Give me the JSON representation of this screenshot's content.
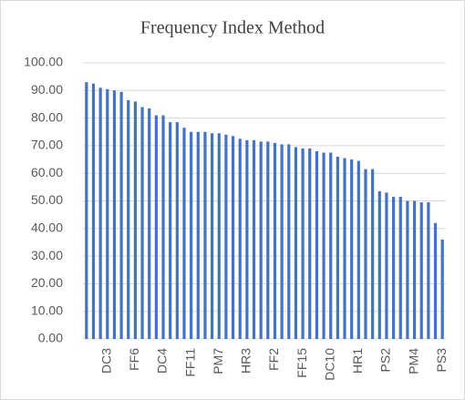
{
  "chart_data": {
    "type": "bar",
    "title": "Frequency Index Method",
    "categories": [
      null,
      null,
      null,
      "DC3",
      null,
      null,
      null,
      "FF6",
      null,
      null,
      null,
      "DC4",
      null,
      null,
      null,
      "FF11",
      null,
      null,
      null,
      "PM7",
      null,
      null,
      null,
      "HR3",
      null,
      null,
      null,
      "FF2",
      null,
      null,
      null,
      "FF15",
      null,
      null,
      null,
      "DC10",
      null,
      null,
      null,
      "HR1",
      null,
      null,
      null,
      "PS2",
      null,
      null,
      null,
      "PM4",
      null,
      null,
      null,
      "PS3"
    ],
    "values": [
      93,
      92.5,
      91,
      90.5,
      90,
      89.5,
      86.5,
      86,
      84,
      83.5,
      81,
      81,
      78.5,
      78.5,
      76.5,
      75,
      75,
      75,
      74.5,
      74.5,
      74,
      73.5,
      72.5,
      72,
      72,
      71.5,
      71.5,
      71,
      70.5,
      70.5,
      69.5,
      69,
      69,
      68,
      67.5,
      67.5,
      66,
      65.5,
      65,
      64.5,
      61.5,
      61.5,
      53.5,
      53,
      51.5,
      51.5,
      50,
      50,
      49.5,
      49.5,
      42,
      36
    ],
    "color": "#4472c4",
    "ylim": [
      0,
      100
    ],
    "yticks": [
      {
        "value": 0,
        "label": "0.00"
      },
      {
        "value": 10,
        "label": "10.00"
      },
      {
        "value": 20,
        "label": "20.00"
      },
      {
        "value": 30,
        "label": "30.00"
      },
      {
        "value": 40,
        "label": "40.00"
      },
      {
        "value": 50,
        "label": "50.00"
      },
      {
        "value": 60,
        "label": "60.00"
      },
      {
        "value": 70,
        "label": "70.00"
      },
      {
        "value": 80,
        "label": "80.00"
      },
      {
        "value": 90,
        "label": "90.00"
      },
      {
        "value": 100,
        "label": "100.00"
      }
    ],
    "grid": true
  }
}
